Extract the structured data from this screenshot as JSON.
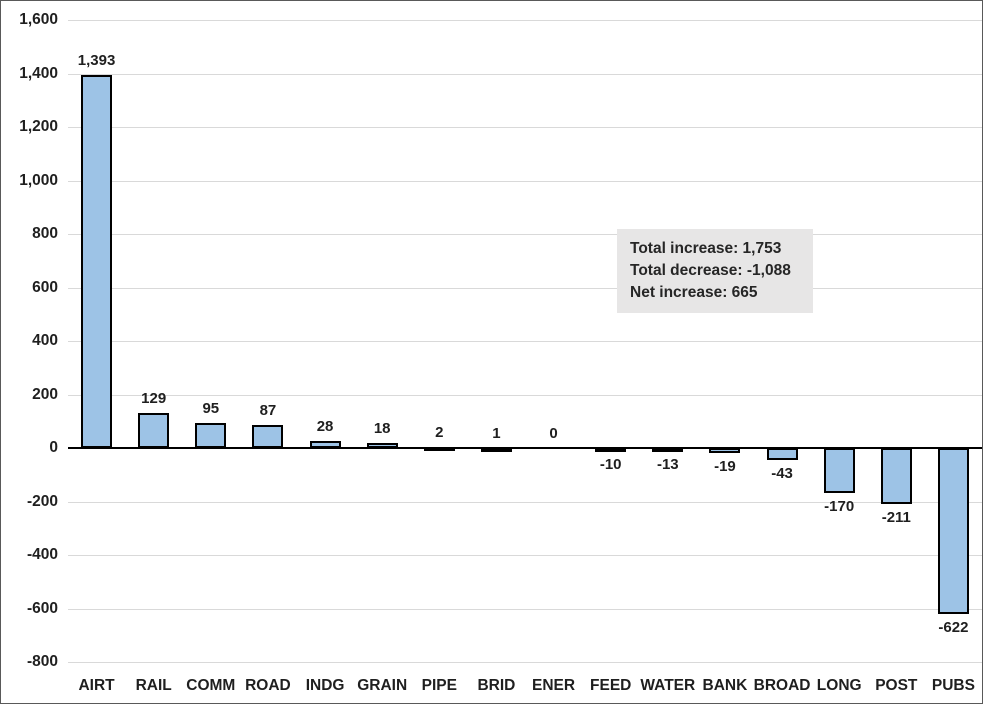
{
  "chart_data": {
    "type": "bar",
    "title": "",
    "xlabel": "",
    "ylabel": "",
    "categories": [
      "AIRT",
      "RAIL",
      "COMM",
      "ROAD",
      "INDG",
      "GRAIN",
      "PIPE",
      "BRID",
      "ENER",
      "FEED",
      "WATER",
      "BANK",
      "BROAD",
      "LONG",
      "POST",
      "PUBS"
    ],
    "values": [
      1393,
      129,
      95,
      87,
      28,
      18,
      2,
      1,
      0,
      -10,
      -13,
      -19,
      -43,
      -170,
      -211,
      -622
    ],
    "data_labels": [
      "1,393",
      "129",
      "95",
      "87",
      "28",
      "18",
      "2",
      "1",
      "0",
      "-10",
      "-13",
      "-19",
      "-43",
      "-170",
      "-211",
      "-622"
    ],
    "ylim": [
      -800,
      1600
    ],
    "y_tick_interval": 200,
    "y_tick_labels_top_down": [
      "1,600",
      "1,400",
      "1,200",
      "1,000",
      "800",
      "600",
      "400",
      "200",
      "0",
      "-200",
      "-400",
      "-600",
      "-800"
    ],
    "grid": true,
    "legend": "none",
    "colors": {
      "bar_fill": "#9dc3e6",
      "bar_border": "#000000",
      "gridline": "#d9d9d9",
      "axis_line": "#000000",
      "text": "#1f1f1f",
      "annotation_bg": "#e7e6e6",
      "chart_border": "#595959",
      "background": "#ffffff"
    }
  },
  "annotation": {
    "lines": [
      "Total increase: 1,753",
      "Total decrease: -1,088",
      "Net increase: 665"
    ]
  }
}
